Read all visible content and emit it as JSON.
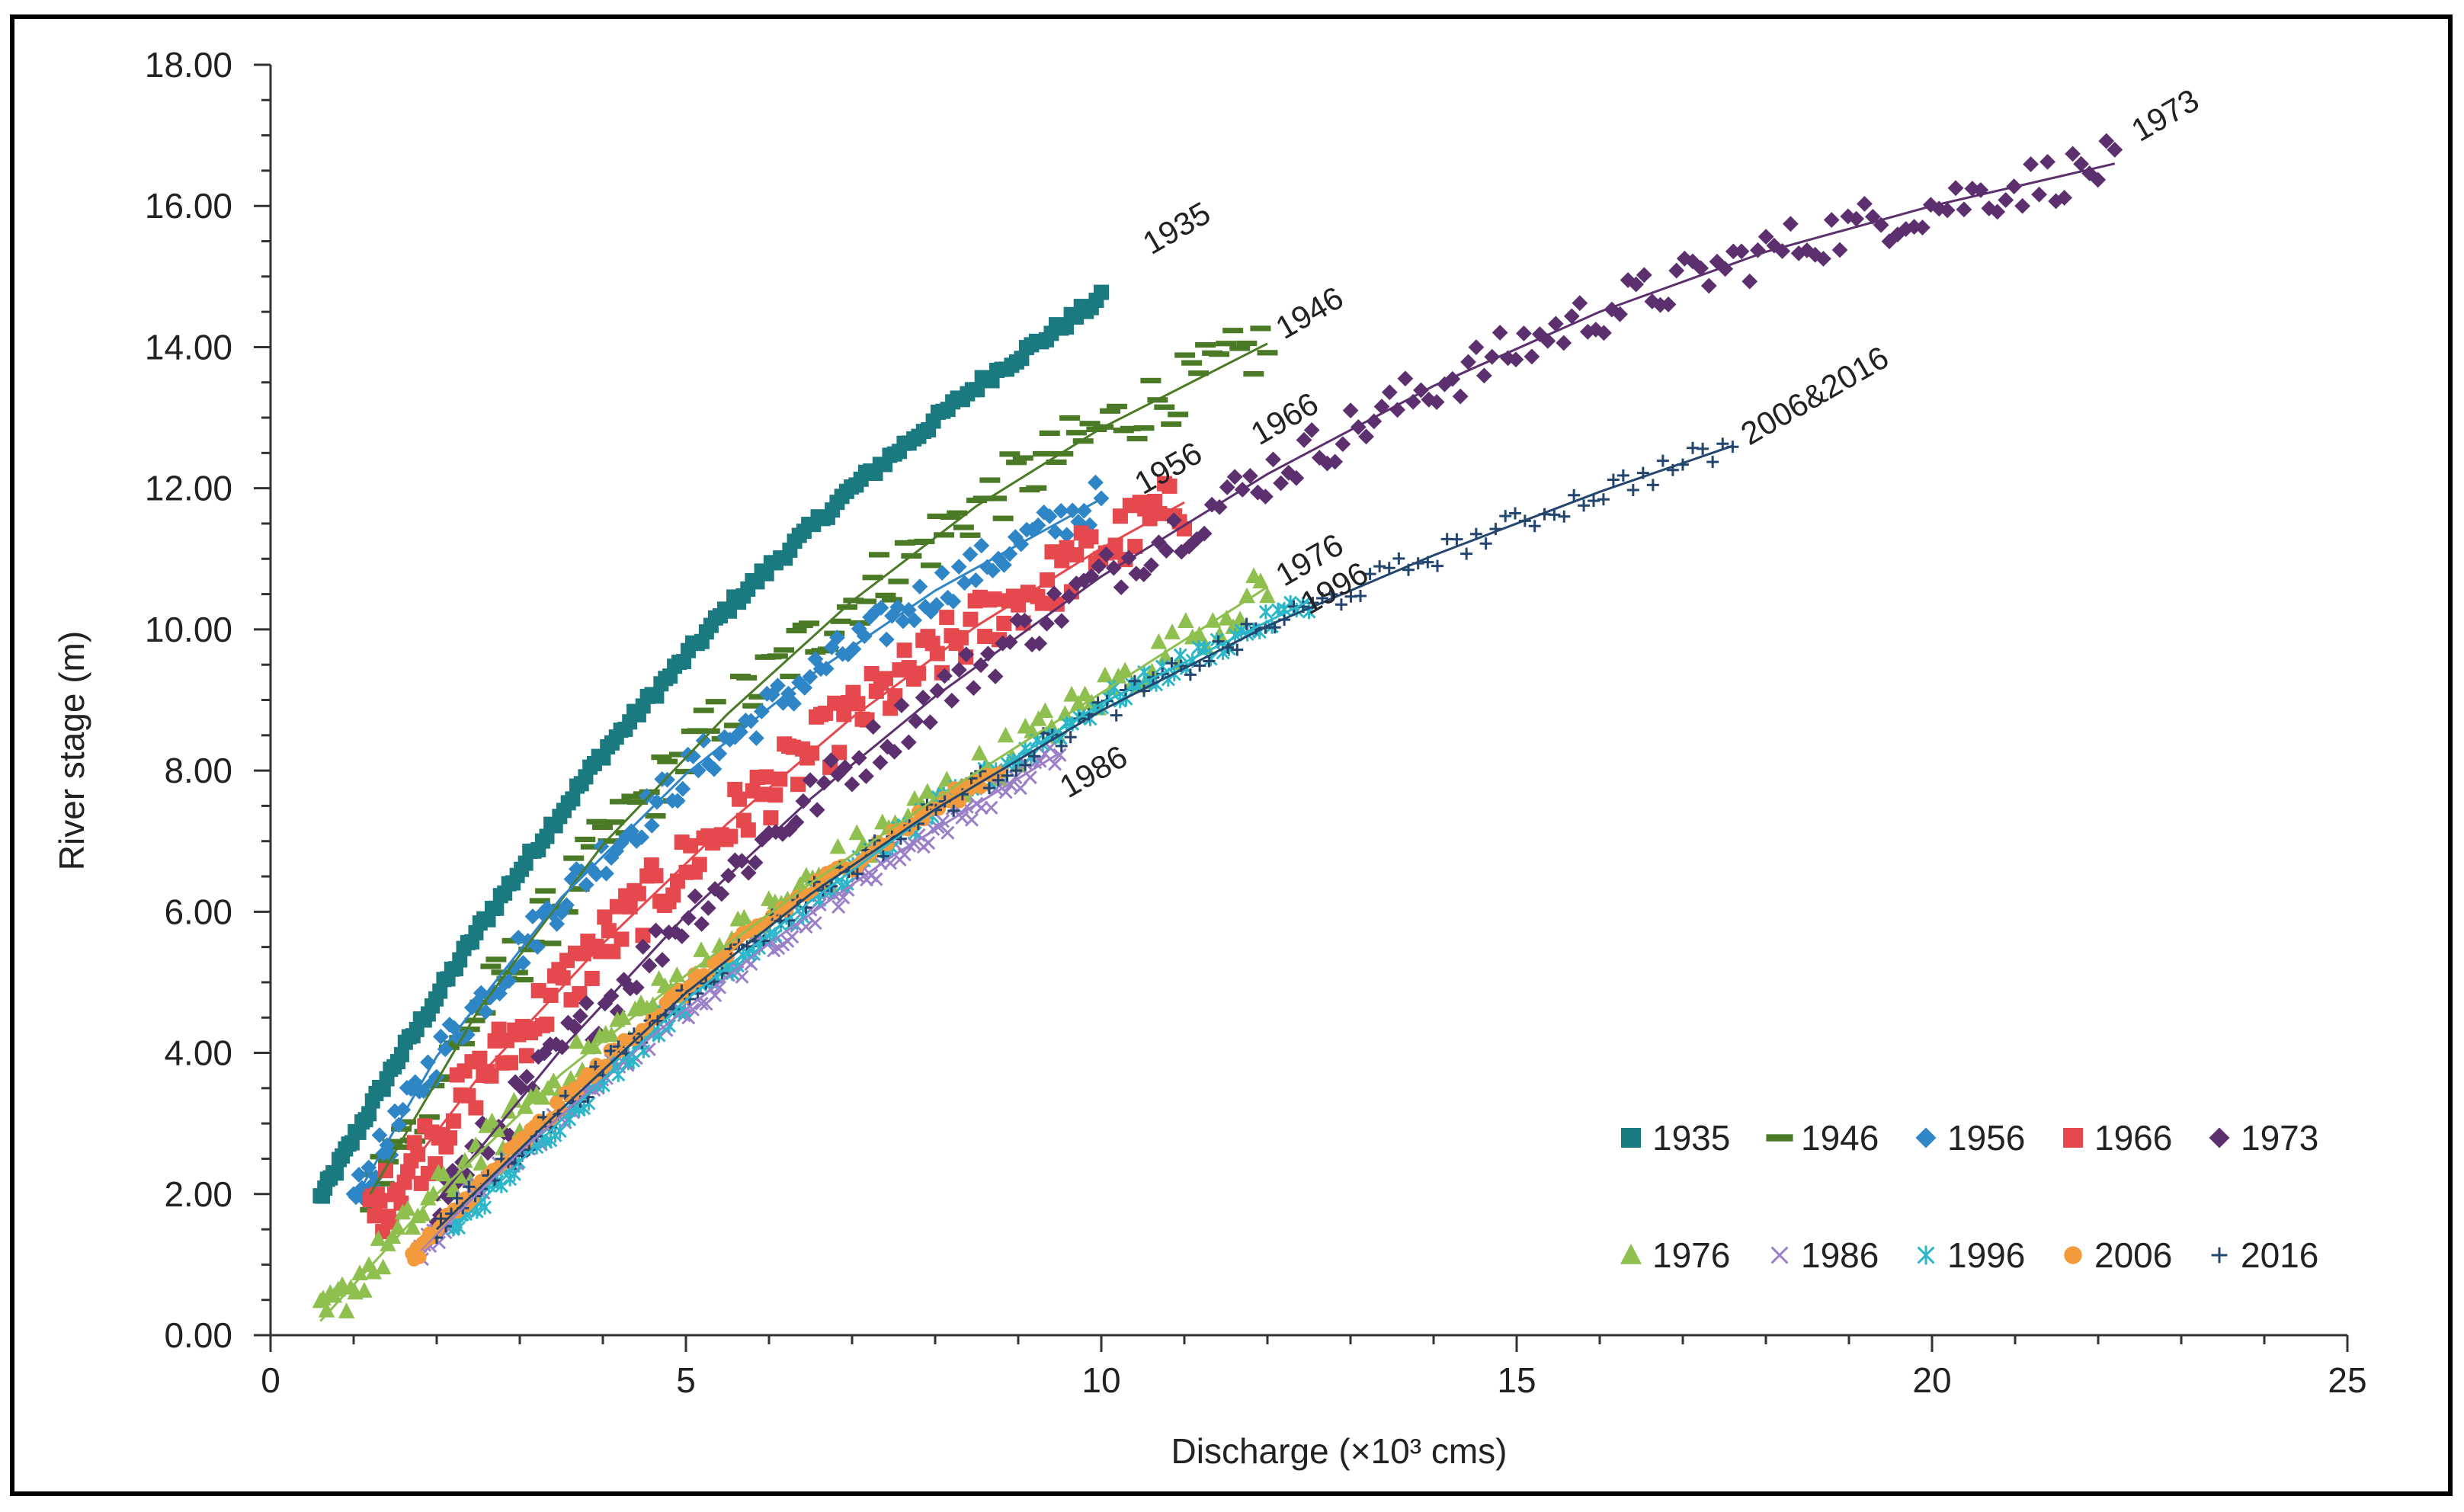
{
  "chart_data": {
    "type": "scatter",
    "title": "",
    "xlabel": "Discharge (×10³ cms)",
    "ylabel": "River stage (m)",
    "xlim": [
      0,
      25
    ],
    "ylim": [
      0,
      18
    ],
    "x_ticks": [
      "0",
      "5",
      "10",
      "15",
      "20",
      "25"
    ],
    "y_ticks": [
      "0.00",
      "2.00",
      "4.00",
      "6.00",
      "8.00",
      "10.00",
      "12.00",
      "14.00",
      "16.00",
      "18.00"
    ],
    "grid": false,
    "legend_position": "bottom-right",
    "series": [
      {
        "name": "1935",
        "color": "#1b7a80",
        "marker": "square",
        "x_range": [
          0.6,
          10.0
        ],
        "y_range": [
          1.95,
          14.7
        ],
        "fit": [
          [
            0.6,
            1.95
          ],
          [
            1.5,
            3.85
          ],
          [
            2.5,
            5.75
          ],
          [
            4.0,
            8.25
          ],
          [
            5.5,
            10.3
          ],
          [
            7.0,
            12.0
          ],
          [
            8.5,
            13.45
          ],
          [
            10.0,
            14.7
          ]
        ]
      },
      {
        "name": "1946",
        "color": "#4a7a26",
        "marker": "dash",
        "x_range": [
          1.2,
          12.0
        ],
        "y_range": [
          2.0,
          13.9
        ],
        "fit": [
          [
            1.2,
            2.0
          ],
          [
            2.5,
            4.6
          ],
          [
            4.0,
            6.95
          ],
          [
            5.5,
            8.8
          ],
          [
            7.0,
            10.4
          ],
          [
            8.5,
            11.75
          ],
          [
            10.0,
            12.85
          ],
          [
            12.0,
            14.05
          ]
        ]
      },
      {
        "name": "1956",
        "color": "#2e86c7",
        "marker": "diamond",
        "x_range": [
          1.0,
          10.0
        ],
        "y_range": [
          1.9,
          11.85
        ],
        "fit": [
          [
            1.0,
            1.9
          ],
          [
            2.0,
            3.95
          ],
          [
            3.5,
            6.2
          ],
          [
            5.0,
            7.95
          ],
          [
            6.5,
            9.35
          ],
          [
            8.0,
            10.55
          ],
          [
            10.0,
            11.85
          ]
        ]
      },
      {
        "name": "1966",
        "color": "#e5484d",
        "marker": "square",
        "x_range": [
          1.2,
          11.0
        ],
        "y_range": [
          1.65,
          11.85
        ],
        "fit": [
          [
            1.2,
            1.65
          ],
          [
            2.5,
            3.65
          ],
          [
            4.0,
            5.55
          ],
          [
            5.5,
            7.25
          ],
          [
            7.0,
            8.75
          ],
          [
            8.5,
            10.05
          ],
          [
            10.0,
            11.15
          ],
          [
            11.0,
            11.8
          ]
        ]
      },
      {
        "name": "1973",
        "color": "#5c2f6e",
        "marker": "diamond",
        "x_range": [
          2.0,
          22.2
        ],
        "y_range": [
          1.9,
          16.7
        ],
        "fit": [
          [
            2.0,
            1.9
          ],
          [
            3.5,
            4.05
          ],
          [
            5.0,
            5.95
          ],
          [
            6.5,
            7.6
          ],
          [
            8.0,
            9.05
          ],
          [
            10.0,
            10.75
          ],
          [
            12.0,
            12.2
          ],
          [
            14.0,
            13.45
          ],
          [
            16.0,
            14.5
          ],
          [
            18.0,
            15.35
          ],
          [
            20.0,
            16.0
          ],
          [
            22.2,
            16.6
          ]
        ]
      },
      {
        "name": "1976",
        "color": "#8fc04f",
        "marker": "triangle",
        "x_range": [
          0.6,
          12.0
        ],
        "y_range": [
          0.2,
          10.4
        ],
        "fit": [
          [
            0.6,
            0.2
          ],
          [
            2.0,
            2.0
          ],
          [
            3.5,
            3.7
          ],
          [
            5.0,
            5.1
          ],
          [
            6.5,
            6.4
          ],
          [
            8.0,
            7.6
          ],
          [
            10.0,
            9.1
          ],
          [
            12.0,
            10.6
          ]
        ]
      },
      {
        "name": "1986",
        "color": "#9b7fc7",
        "marker": "x",
        "x_range": [
          1.8,
          9.5
        ],
        "y_range": [
          1.0,
          8.3
        ],
        "fit": [
          [
            1.8,
            1.2
          ],
          [
            3.0,
            2.6
          ],
          [
            4.5,
            4.15
          ],
          [
            6.0,
            5.55
          ],
          [
            7.5,
            6.8
          ],
          [
            9.5,
            8.25
          ]
        ]
      },
      {
        "name": "1996",
        "color": "#2bb7c9",
        "marker": "star",
        "x_range": [
          2.2,
          12.5
        ],
        "y_range": [
          1.5,
          10.4
        ],
        "fit": [
          [
            2.2,
            1.5
          ],
          [
            3.5,
            3.05
          ],
          [
            5.0,
            4.75
          ],
          [
            6.5,
            6.15
          ],
          [
            8.0,
            7.45
          ],
          [
            10.0,
            8.95
          ],
          [
            12.5,
            10.4
          ]
        ]
      },
      {
        "name": "2006",
        "color": "#f39a3d",
        "marker": "circle",
        "x_range": [
          1.7,
          8.8
        ],
        "y_range": [
          1.1,
          8.0
        ],
        "fit": [
          [
            1.7,
            1.1
          ],
          [
            3.0,
            2.7
          ],
          [
            4.5,
            4.4
          ],
          [
            6.0,
            5.9
          ],
          [
            7.5,
            7.1
          ],
          [
            8.8,
            8.05
          ]
        ]
      },
      {
        "name": "2016",
        "color": "#23456e",
        "marker": "plus",
        "x_range": [
          2.0,
          17.6
        ],
        "y_range": [
          1.5,
          12.6
        ],
        "fit": [
          [
            2.0,
            1.5
          ],
          [
            3.5,
            3.2
          ],
          [
            5.0,
            4.85
          ],
          [
            6.5,
            6.25
          ],
          [
            8.0,
            7.45
          ],
          [
            10.0,
            8.85
          ],
          [
            12.0,
            10.05
          ],
          [
            14.0,
            11.05
          ],
          [
            16.0,
            11.95
          ],
          [
            17.6,
            12.6
          ]
        ]
      }
    ],
    "curve_labels": [
      {
        "text": "1935",
        "at": [
          10.6,
          15.3
        ],
        "rotate": -30
      },
      {
        "text": "1946",
        "at": [
          12.2,
          14.1
        ],
        "rotate": -30
      },
      {
        "text": "1956",
        "at": [
          10.5,
          11.9
        ],
        "rotate": -30
      },
      {
        "text": "1966",
        "at": [
          11.9,
          12.6
        ],
        "rotate": -30
      },
      {
        "text": "1973",
        "at": [
          22.5,
          16.9
        ],
        "rotate": -30
      },
      {
        "text": "1976",
        "at": [
          12.2,
          10.6
        ],
        "rotate": -30
      },
      {
        "text": "1996",
        "at": [
          12.5,
          10.2
        ],
        "rotate": -30
      },
      {
        "text": "1986",
        "at": [
          9.6,
          7.6
        ],
        "rotate": -30
      },
      {
        "text": "2006&2016",
        "at": [
          17.8,
          12.6
        ],
        "rotate": -30
      }
    ]
  }
}
